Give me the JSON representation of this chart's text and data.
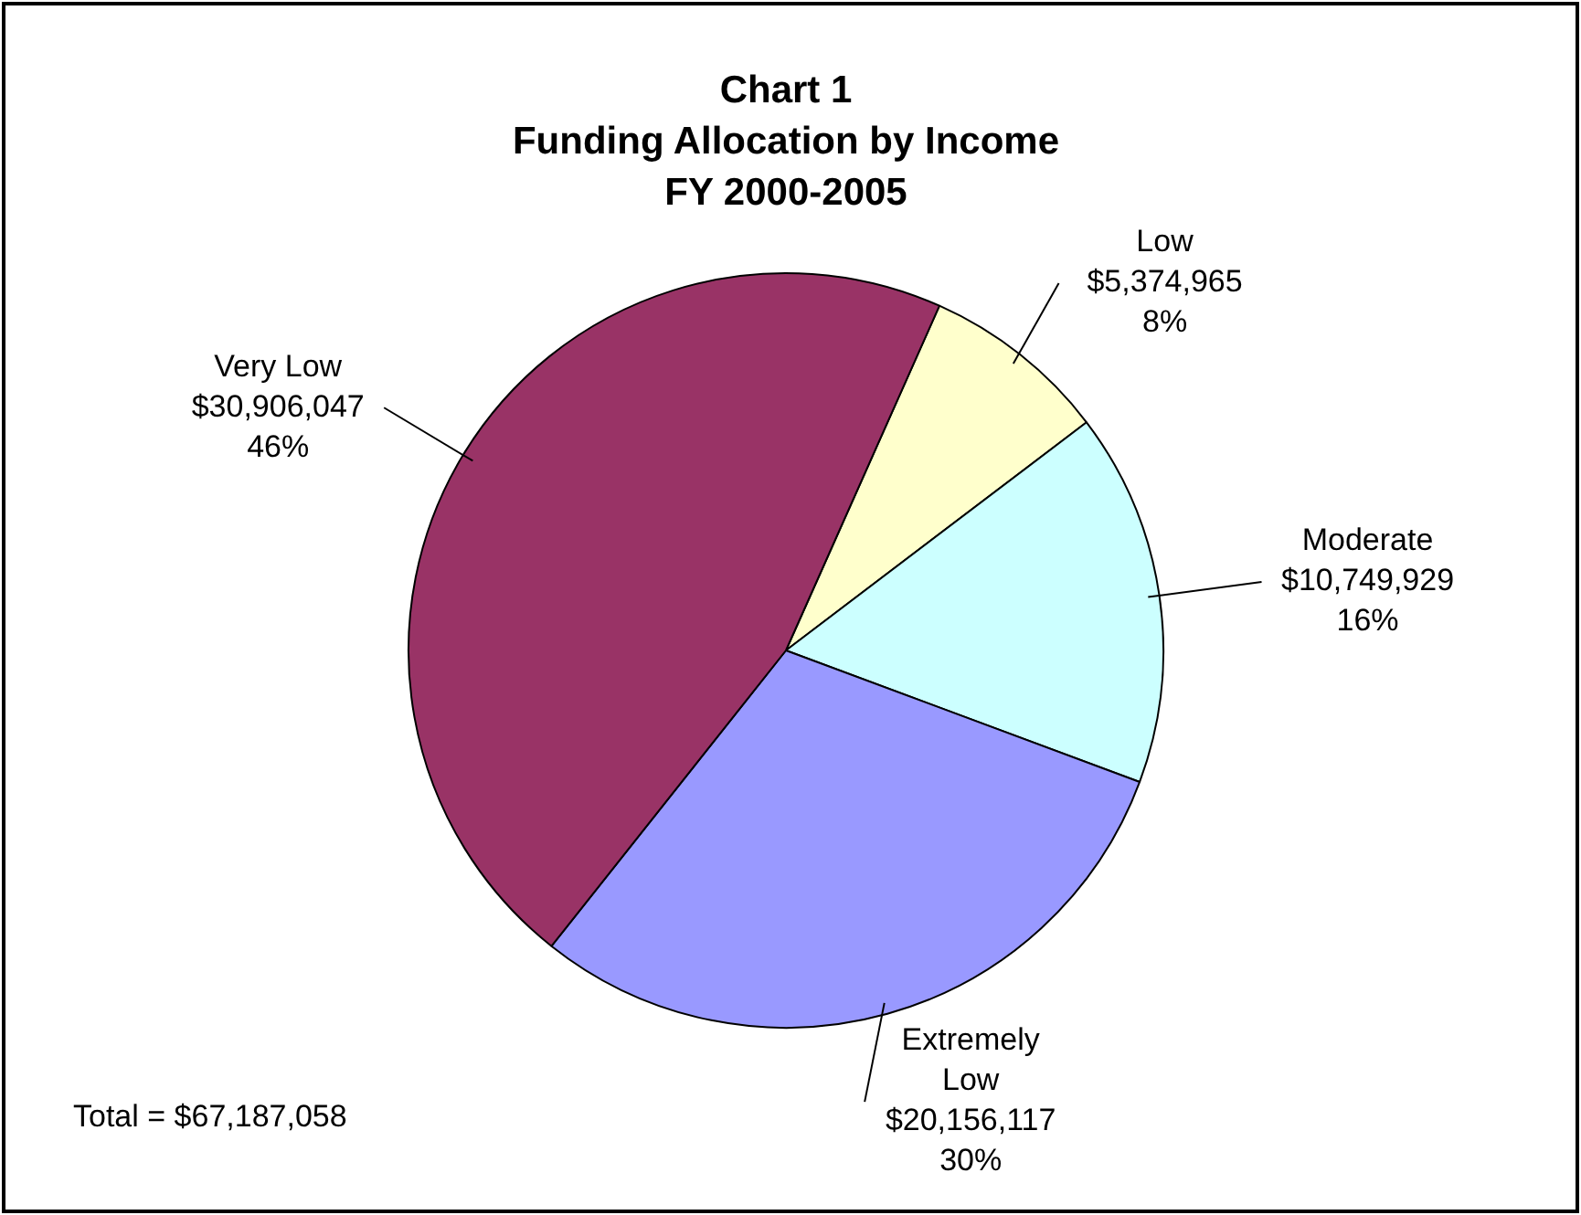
{
  "chart_data": {
    "type": "pie",
    "title": "Chart 1\nFunding Allocation by Income\nFY 2000-2005",
    "categories": [
      "Low",
      "Moderate",
      "Extremely Low",
      "Very Low"
    ],
    "values": [
      5374965,
      10749929,
      20156117,
      30906047
    ],
    "colors": [
      "#ffffcc",
      "#ccffff",
      "#9999ff",
      "#993366"
    ],
    "value_labels": [
      "$5,374,965\n8%",
      "$10,749,929\n16%",
      "$20,156,117\n30%",
      "$30,906,047\n46%"
    ],
    "annotations": [
      "Total = $67,187,058"
    ],
    "legend": false
  }
}
